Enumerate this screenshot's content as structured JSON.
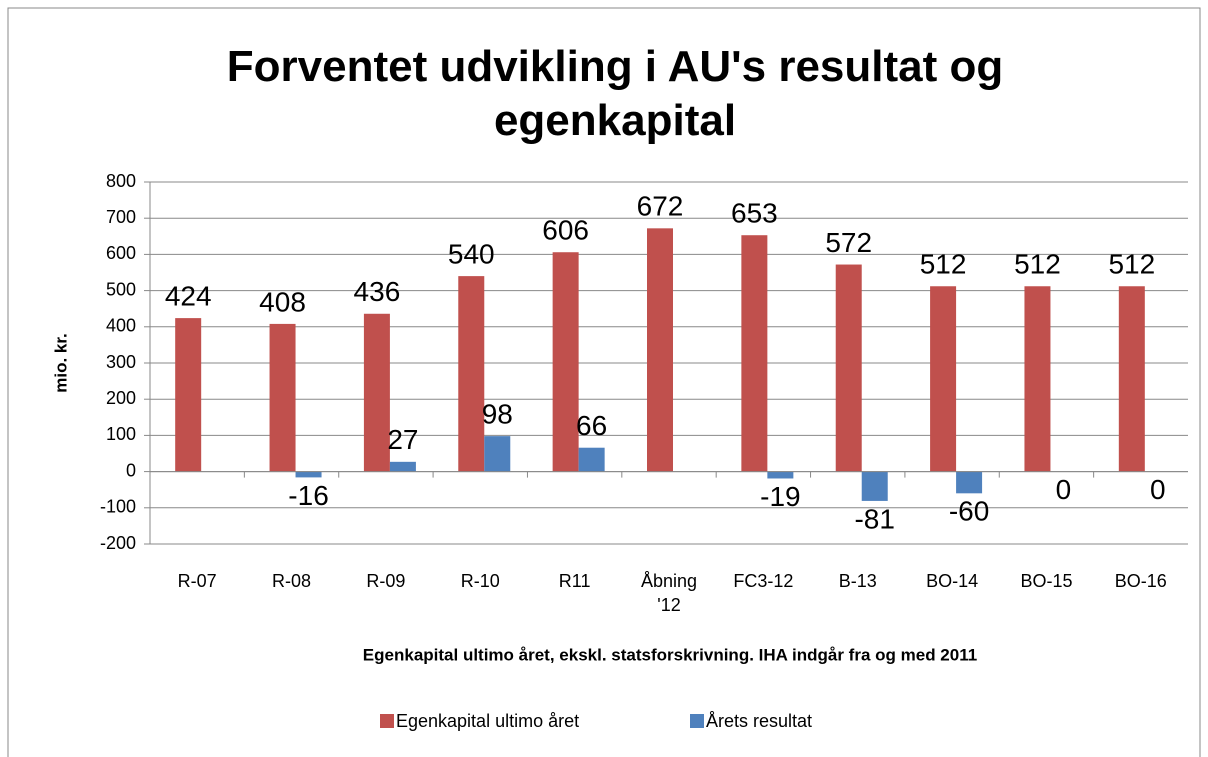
{
  "chart_data": {
    "type": "bar",
    "title": "Forventet udvikling i AU's resultat og egenkapital",
    "y_label": "mio. kr.",
    "x_label": "Egenkapital ultimo året, ekskl. statsforskrivning. IHA indgår fra og med 2011",
    "categories": [
      "R-07",
      "R-08",
      "R-09",
      "R-10",
      "R11",
      "Åbning '12",
      "FC3-12",
      "B-13",
      "BO-14",
      "BO-15",
      "BO-16"
    ],
    "series": [
      {
        "name": "Egenkapital ultimo året",
        "color": "#c0504d",
        "values": [
          424,
          408,
          436,
          540,
          606,
          672,
          653,
          572,
          512,
          512,
          512
        ]
      },
      {
        "name": "Årets resultat",
        "color": "#4f81bd",
        "values": [
          null,
          -16,
          27,
          98,
          66,
          null,
          -19,
          -81,
          -60,
          0,
          0
        ]
      }
    ],
    "ylim": [
      -200,
      800
    ],
    "yticks": [
      -200,
      -100,
      0,
      100,
      200,
      300,
      400,
      500,
      600,
      700,
      800
    ],
    "grid": true,
    "legend": "bottom"
  }
}
